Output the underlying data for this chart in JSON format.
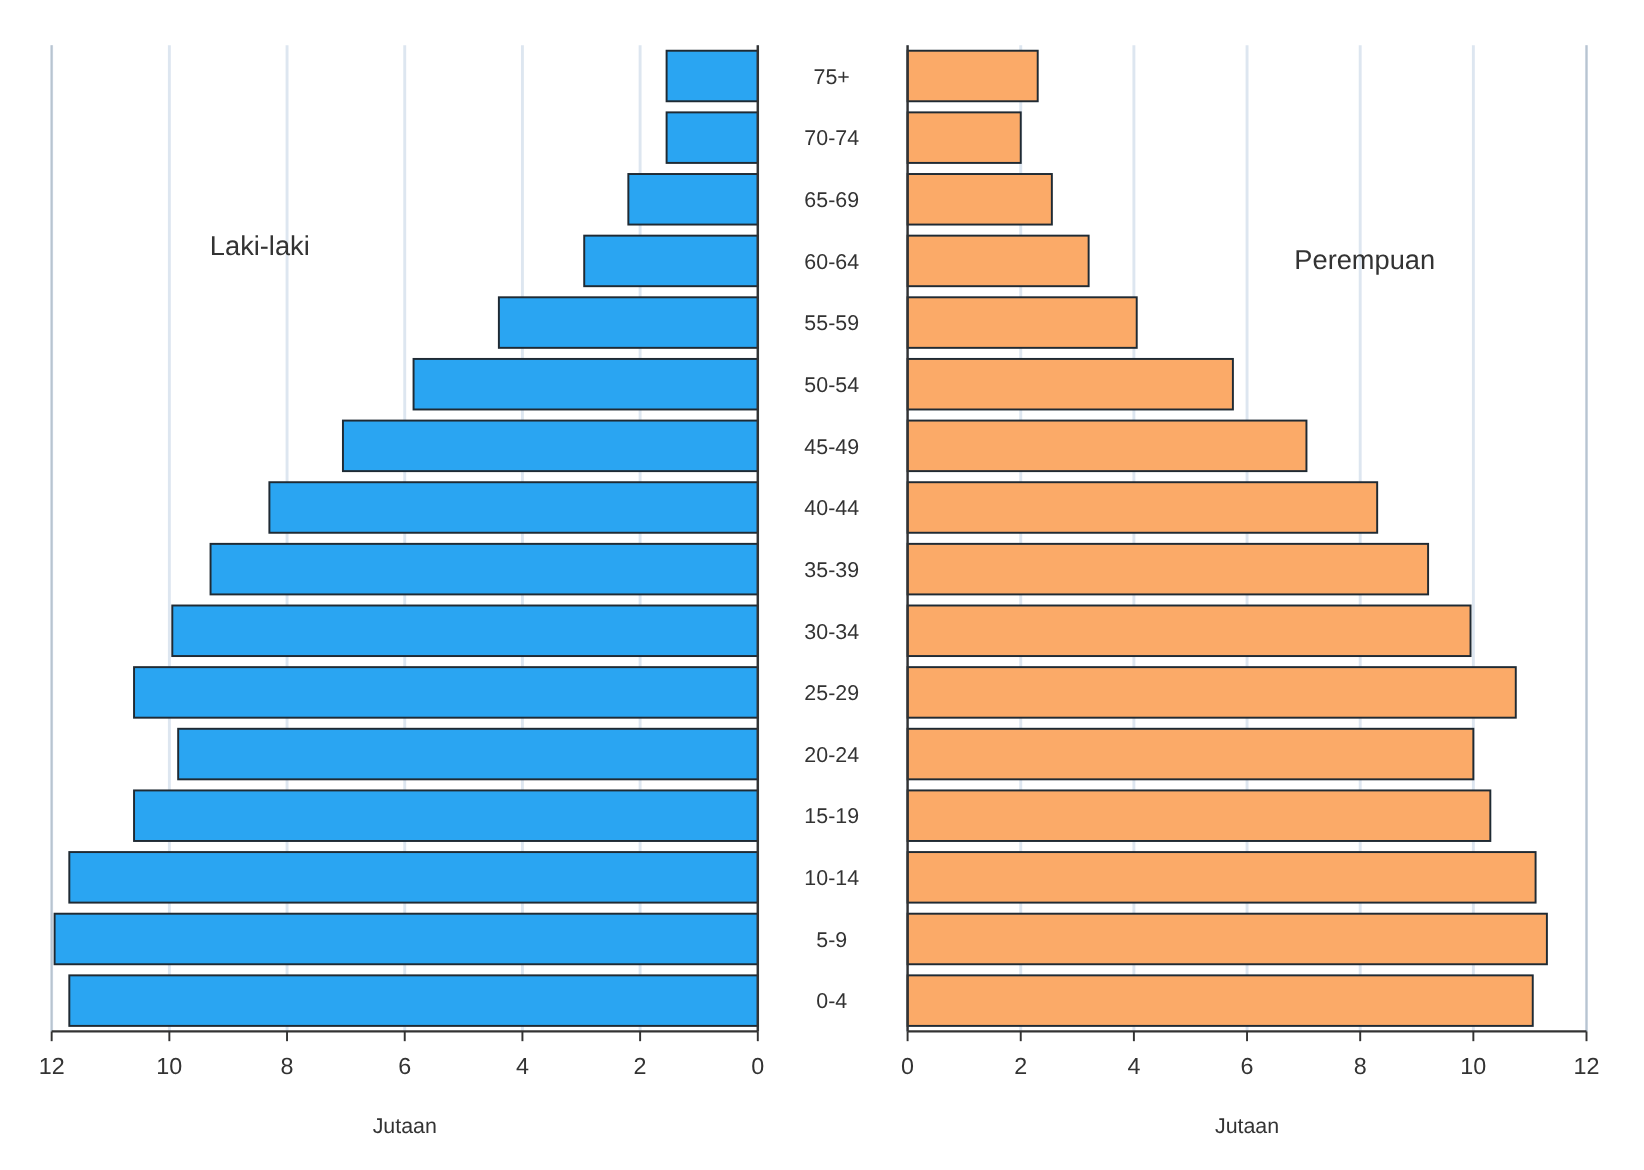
{
  "chart_data": [
    {
      "type": "bar",
      "orientation": "horizontal",
      "categories": [
        "75+",
        "70-74",
        "65-69",
        "60-64",
        "55-59",
        "50-54",
        "45-49",
        "40-44",
        "35-39",
        "30-34",
        "25-29",
        "20-24",
        "15-19",
        "10-14",
        "5-9",
        "0-4"
      ],
      "series": [
        {
          "name": "Laki-laki",
          "color": "#2aa5f2",
          "values": [
            1.55,
            1.55,
            2.2,
            2.95,
            4.4,
            5.85,
            7.05,
            8.3,
            9.3,
            9.95,
            10.6,
            9.85,
            10.6,
            11.7,
            11.95,
            11.7
          ]
        }
      ],
      "xlim": [
        12,
        0
      ],
      "xticks": [
        12,
        10,
        8,
        6,
        4,
        2,
        0
      ],
      "xlabel": "Jutaan",
      "grid": "x"
    },
    {
      "type": "bar",
      "orientation": "horizontal",
      "categories": [
        null,
        null,
        null,
        null,
        null,
        null,
        null,
        null,
        null,
        null,
        null,
        null,
        null,
        null,
        null,
        null
      ],
      "series": [
        {
          "name": "Perempuan",
          "color": "#fbaa68",
          "values": [
            2.3,
            2.0,
            2.55,
            3.2,
            4.05,
            5.75,
            7.05,
            8.3,
            9.2,
            9.95,
            10.75,
            10.0,
            10.3,
            11.1,
            11.3,
            11.05
          ]
        }
      ],
      "xlim": [
        0,
        12
      ],
      "xticks": [
        0,
        2,
        4,
        6,
        8,
        10,
        12
      ],
      "xlabel": "Jutaan",
      "grid": "x"
    }
  ]
}
